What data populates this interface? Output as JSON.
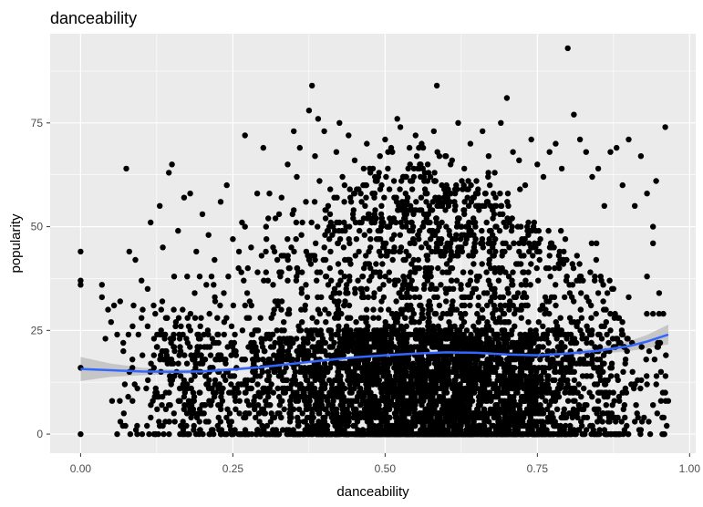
{
  "chart_data": {
    "type": "scatter",
    "title": "danceability",
    "xlabel": "danceability",
    "ylabel": "popularity",
    "xlim": [
      -0.05,
      1.01
    ],
    "ylim": [
      -4.6,
      96.5
    ],
    "x_ticks": [
      0.0,
      0.25,
      0.5,
      0.75,
      1.0
    ],
    "x_tick_labels": [
      "0.00",
      "0.25",
      "0.50",
      "0.75",
      "1.00"
    ],
    "y_ticks": [
      0,
      25,
      50,
      75
    ],
    "y_tick_labels": [
      "0",
      "25",
      "50",
      "75"
    ],
    "grid": true,
    "legend": "none",
    "colors": {
      "panel": "#ebebeb",
      "grid": "#ffffff",
      "points": "#000000",
      "smooth_line": "#3366ff",
      "confidence_band": "#bfbfbf"
    },
    "points": [
      [
        0.0,
        44
      ],
      [
        0.0,
        37
      ],
      [
        0.0,
        36
      ],
      [
        0.0,
        16
      ],
      [
        0.0,
        0
      ],
      [
        0.035,
        36
      ],
      [
        0.035,
        33
      ],
      [
        0.045,
        30
      ],
      [
        0.05,
        27
      ],
      [
        0.055,
        31
      ],
      [
        0.06,
        24
      ],
      [
        0.06,
        0
      ],
      [
        0.065,
        32
      ],
      [
        0.07,
        22
      ],
      [
        0.075,
        64
      ],
      [
        0.08,
        44
      ],
      [
        0.085,
        18
      ],
      [
        0.09,
        42
      ],
      [
        0.1,
        37
      ],
      [
        0.11,
        35
      ],
      [
        0.11,
        26
      ],
      [
        0.115,
        51
      ],
      [
        0.12,
        31
      ],
      [
        0.13,
        55
      ],
      [
        0.135,
        45
      ],
      [
        0.14,
        28
      ],
      [
        0.145,
        63
      ],
      [
        0.15,
        65
      ],
      [
        0.16,
        49
      ],
      [
        0.17,
        57
      ],
      [
        0.175,
        38
      ],
      [
        0.18,
        58
      ],
      [
        0.19,
        44
      ],
      [
        0.2,
        53
      ],
      [
        0.21,
        48
      ],
      [
        0.215,
        38
      ],
      [
        0.22,
        42
      ],
      [
        0.23,
        56
      ],
      [
        0.24,
        60
      ],
      [
        0.25,
        47
      ],
      [
        0.26,
        44
      ],
      [
        0.265,
        51
      ],
      [
        0.27,
        50
      ],
      [
        0.27,
        72
      ],
      [
        0.28,
        45
      ],
      [
        0.29,
        58
      ],
      [
        0.3,
        69
      ],
      [
        0.31,
        58
      ],
      [
        0.32,
        52
      ],
      [
        0.33,
        57
      ],
      [
        0.34,
        65
      ],
      [
        0.35,
        73
      ],
      [
        0.355,
        62
      ],
      [
        0.36,
        69
      ],
      [
        0.37,
        56
      ],
      [
        0.375,
        78
      ],
      [
        0.38,
        84
      ],
      [
        0.385,
        67
      ],
      [
        0.39,
        76
      ],
      [
        0.4,
        73
      ],
      [
        0.41,
        59
      ],
      [
        0.42,
        68
      ],
      [
        0.425,
        75
      ],
      [
        0.43,
        62
      ],
      [
        0.44,
        72
      ],
      [
        0.45,
        66
      ],
      [
        0.46,
        58
      ],
      [
        0.47,
        70
      ],
      [
        0.48,
        64
      ],
      [
        0.49,
        63
      ],
      [
        0.5,
        71
      ],
      [
        0.51,
        69
      ],
      [
        0.52,
        76
      ],
      [
        0.525,
        74
      ],
      [
        0.53,
        62
      ],
      [
        0.54,
        69
      ],
      [
        0.55,
        72
      ],
      [
        0.56,
        70
      ],
      [
        0.57,
        65
      ],
      [
        0.58,
        73
      ],
      [
        0.585,
        84
      ],
      [
        0.6,
        67
      ],
      [
        0.61,
        66
      ],
      [
        0.62,
        75
      ],
      [
        0.63,
        64
      ],
      [
        0.64,
        70
      ],
      [
        0.65,
        61
      ],
      [
        0.66,
        73
      ],
      [
        0.67,
        67
      ],
      [
        0.68,
        63
      ],
      [
        0.69,
        75
      ],
      [
        0.7,
        81
      ],
      [
        0.71,
        68
      ],
      [
        0.72,
        66
      ],
      [
        0.73,
        60
      ],
      [
        0.74,
        71
      ],
      [
        0.75,
        65
      ],
      [
        0.76,
        62
      ],
      [
        0.77,
        68
      ],
      [
        0.78,
        70
      ],
      [
        0.79,
        64
      ],
      [
        0.8,
        93
      ],
      [
        0.81,
        77
      ],
      [
        0.82,
        71
      ],
      [
        0.83,
        68
      ],
      [
        0.84,
        62
      ],
      [
        0.85,
        64
      ],
      [
        0.86,
        55
      ],
      [
        0.87,
        68
      ],
      [
        0.88,
        69
      ],
      [
        0.89,
        60
      ],
      [
        0.9,
        71
      ],
      [
        0.91,
        55
      ],
      [
        0.92,
        67
      ],
      [
        0.93,
        58
      ],
      [
        0.94,
        50
      ],
      [
        0.945,
        61
      ],
      [
        0.96,
        74
      ],
      [
        0.96,
        10
      ],
      [
        0.965,
        8
      ],
      [
        0.95,
        34
      ],
      [
        0.955,
        4
      ],
      [
        0.94,
        7
      ],
      [
        0.93,
        12
      ],
      [
        0.92,
        1
      ],
      [
        0.91,
        3
      ],
      [
        0.95,
        29
      ],
      [
        0.94,
        46
      ],
      [
        0.93,
        38
      ],
      [
        0.9,
        33
      ]
    ],
    "smooth_line": [
      [
        0.0,
        15.7
      ],
      [
        0.05,
        15.4
      ],
      [
        0.1,
        15.1
      ],
      [
        0.15,
        15.0
      ],
      [
        0.2,
        15.1
      ],
      [
        0.25,
        15.6
      ],
      [
        0.3,
        16.2
      ],
      [
        0.35,
        17.0
      ],
      [
        0.4,
        17.8
      ],
      [
        0.45,
        18.5
      ],
      [
        0.5,
        19.0
      ],
      [
        0.55,
        19.4
      ],
      [
        0.6,
        19.7
      ],
      [
        0.65,
        19.6
      ],
      [
        0.7,
        19.2
      ],
      [
        0.75,
        19.0
      ],
      [
        0.8,
        19.4
      ],
      [
        0.85,
        20.1
      ],
      [
        0.9,
        21.2
      ],
      [
        0.93,
        22.3
      ],
      [
        0.965,
        24.0
      ]
    ],
    "confidence_band": [
      [
        0.0,
        12.8,
        18.6
      ],
      [
        0.05,
        13.8,
        17.0
      ],
      [
        0.1,
        14.2,
        16.0
      ],
      [
        0.15,
        14.4,
        15.6
      ],
      [
        0.2,
        14.6,
        15.6
      ],
      [
        0.25,
        15.2,
        16.0
      ],
      [
        0.3,
        15.9,
        16.5
      ],
      [
        0.35,
        16.7,
        17.3
      ],
      [
        0.4,
        17.5,
        18.1
      ],
      [
        0.45,
        18.2,
        18.8
      ],
      [
        0.5,
        18.7,
        19.3
      ],
      [
        0.55,
        19.1,
        19.7
      ],
      [
        0.6,
        19.4,
        20.0
      ],
      [
        0.65,
        19.3,
        19.9
      ],
      [
        0.7,
        18.9,
        19.5
      ],
      [
        0.75,
        18.6,
        19.4
      ],
      [
        0.8,
        18.9,
        19.9
      ],
      [
        0.85,
        19.3,
        20.9
      ],
      [
        0.9,
        20.0,
        22.4
      ],
      [
        0.93,
        20.7,
        23.9
      ],
      [
        0.965,
        21.6,
        26.4
      ]
    ]
  }
}
